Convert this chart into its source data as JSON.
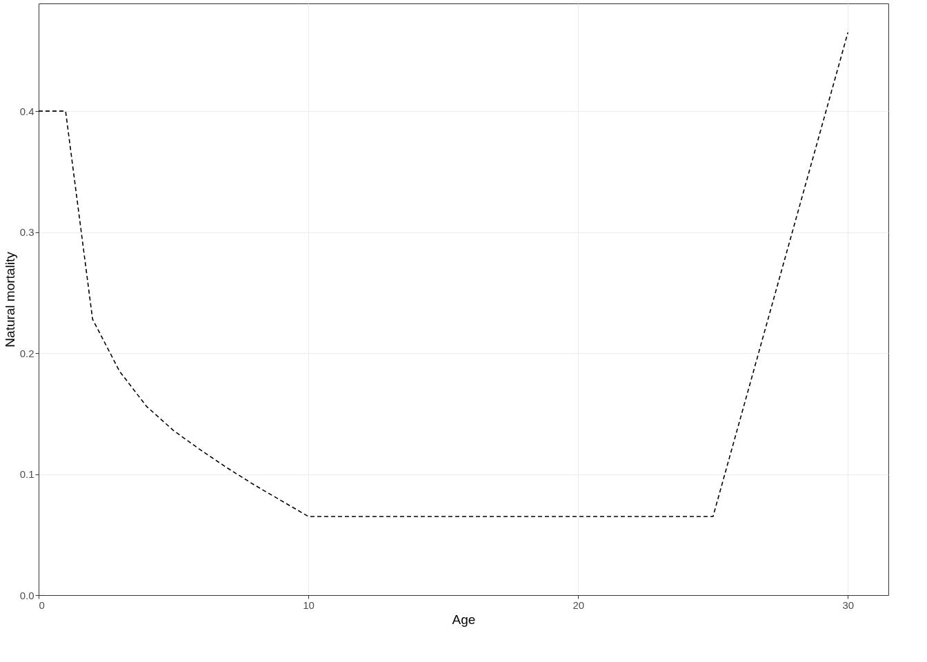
{
  "chart_data": {
    "type": "line",
    "xlabel": "Age",
    "ylabel": "Natural mortality",
    "x": [
      0,
      1,
      2,
      3,
      4,
      5,
      6,
      7,
      8,
      9,
      10,
      25,
      30
    ],
    "series": [
      {
        "color": "#000000",
        "values": [
          0.4,
          0.4,
          0.228,
          0.185,
          0.156,
          0.136,
          0.12,
          0.105,
          0.091,
          0.078,
          0.065,
          0.065,
          0.465
        ]
      }
    ],
    "xlim": [
      0,
      31.5
    ],
    "xticks": [
      0,
      10,
      20,
      30
    ],
    "ylim": [
      0,
      0.489
    ],
    "yticks": [
      {
        "value": 0,
        "label": "0.0"
      },
      0.1,
      0.2,
      0.3,
      0.4
    ],
    "grid": true,
    "line_style": "dashed",
    "marker": "none",
    "legend": false
  }
}
